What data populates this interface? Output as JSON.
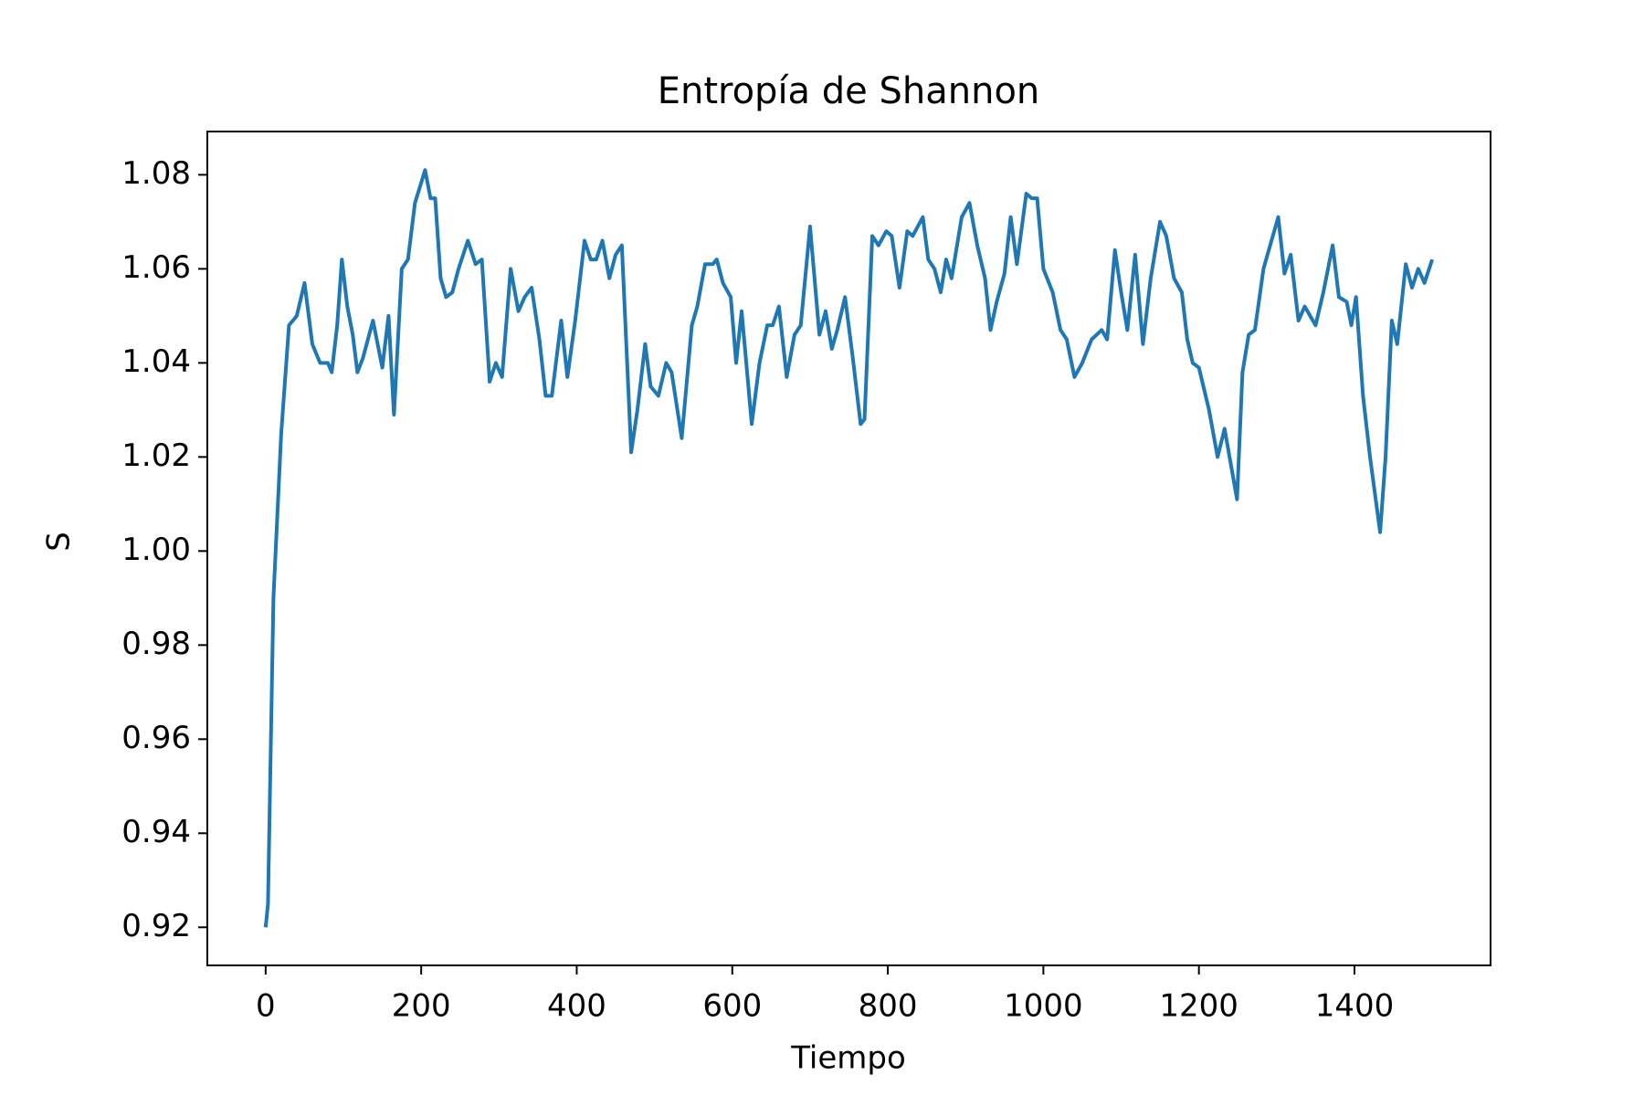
{
  "chart_data": {
    "type": "line",
    "title": "Entropía de Shannon",
    "x_label": "Tiempo",
    "y_label": "S",
    "color": "#1f77b4",
    "x": [
      0,
      3,
      10,
      20,
      30,
      40,
      50,
      60,
      70,
      80,
      85,
      92,
      98,
      105,
      112,
      118,
      125,
      138,
      150,
      158,
      165,
      175,
      183,
      192,
      205,
      212,
      218,
      225,
      232,
      240,
      248,
      260,
      270,
      278,
      288,
      296,
      304,
      315,
      325,
      333,
      342,
      352,
      360,
      368,
      380,
      388,
      398,
      410,
      418,
      425,
      433,
      442,
      450,
      458,
      470,
      478,
      488,
      495,
      505,
      515,
      522,
      535,
      548,
      555,
      565,
      575,
      580,
      588,
      598,
      605,
      612,
      618,
      625,
      635,
      645,
      652,
      660,
      670,
      680,
      688,
      700,
      712,
      720,
      728,
      735,
      745,
      755,
      765,
      770,
      780,
      788,
      798,
      805,
      815,
      825,
      832,
      845,
      852,
      860,
      868,
      875,
      882,
      895,
      905,
      915,
      925,
      932,
      940,
      950,
      958,
      966,
      978,
      985,
      992,
      1000,
      1012,
      1022,
      1030,
      1040,
      1050,
      1062,
      1075,
      1082,
      1092,
      1100,
      1108,
      1118,
      1128,
      1138,
      1150,
      1158,
      1168,
      1178,
      1185,
      1192,
      1200,
      1213,
      1224,
      1233,
      1249,
      1256,
      1264,
      1272,
      1283,
      1302,
      1310,
      1318,
      1328,
      1336,
      1350,
      1360,
      1372,
      1380,
      1390,
      1396,
      1402,
      1411,
      1420,
      1433,
      1440,
      1448,
      1455,
      1466,
      1474,
      1482,
      1490,
      1500
    ],
    "values": [
      0.92,
      0.925,
      0.99,
      1.025,
      1.048,
      1.05,
      1.057,
      1.044,
      1.04,
      1.04,
      1.038,
      1.048,
      1.062,
      1.052,
      1.046,
      1.038,
      1.041,
      1.049,
      1.039,
      1.05,
      1.029,
      1.06,
      1.062,
      1.074,
      1.081,
      1.075,
      1.075,
      1.058,
      1.054,
      1.055,
      1.06,
      1.066,
      1.061,
      1.062,
      1.036,
      1.04,
      1.037,
      1.06,
      1.051,
      1.054,
      1.056,
      1.045,
      1.033,
      1.033,
      1.049,
      1.037,
      1.049,
      1.066,
      1.062,
      1.062,
      1.066,
      1.058,
      1.063,
      1.065,
      1.021,
      1.03,
      1.044,
      1.035,
      1.033,
      1.04,
      1.038,
      1.024,
      1.048,
      1.052,
      1.061,
      1.061,
      1.062,
      1.057,
      1.054,
      1.04,
      1.051,
      1.04,
      1.027,
      1.04,
      1.048,
      1.048,
      1.052,
      1.037,
      1.046,
      1.048,
      1.069,
      1.046,
      1.051,
      1.043,
      1.047,
      1.054,
      1.041,
      1.027,
      1.028,
      1.067,
      1.065,
      1.068,
      1.067,
      1.056,
      1.068,
      1.067,
      1.071,
      1.062,
      1.06,
      1.055,
      1.062,
      1.058,
      1.071,
      1.074,
      1.065,
      1.058,
      1.047,
      1.053,
      1.059,
      1.071,
      1.061,
      1.076,
      1.075,
      1.075,
      1.06,
      1.055,
      1.047,
      1.045,
      1.037,
      1.04,
      1.045,
      1.047,
      1.045,
      1.064,
      1.055,
      1.047,
      1.063,
      1.044,
      1.058,
      1.07,
      1.067,
      1.058,
      1.055,
      1.045,
      1.04,
      1.039,
      1.03,
      1.02,
      1.026,
      1.011,
      1.038,
      1.046,
      1.047,
      1.06,
      1.071,
      1.059,
      1.063,
      1.049,
      1.052,
      1.048,
      1.055,
      1.065,
      1.054,
      1.053,
      1.048,
      1.054,
      1.033,
      1.02,
      1.004,
      1.02,
      1.049,
      1.044,
      1.061,
      1.056,
      1.06,
      1.057,
      1.062
    ],
    "xlim": [
      -75,
      1575
    ],
    "xticks": [
      0,
      200,
      400,
      600,
      800,
      1000,
      1200,
      1400
    ],
    "ylim": [
      0.9119,
      1.0892
    ],
    "yticks": [
      0.92,
      0.94,
      0.96,
      0.98,
      {
        "value": 1,
        "label": "1.00"
      },
      1.02,
      1.04,
      1.06,
      1.08
    ]
  }
}
